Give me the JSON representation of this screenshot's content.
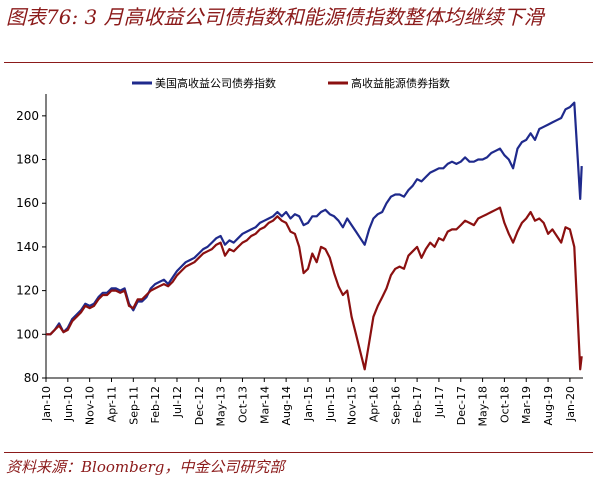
{
  "figure": {
    "title": "图表76: 3 月高收益公司债指数和能源债指数整体均继续下滑",
    "source": "资料来源：Bloomberg，中金公司研究部"
  },
  "chart_data": {
    "type": "line",
    "ylim": [
      80,
      210
    ],
    "yticks": [
      80,
      100,
      120,
      140,
      160,
      180,
      200
    ],
    "xlim": [
      "2010-01",
      "2020-03"
    ],
    "xticks": [
      "Jan-10",
      "Jun-10",
      "Nov-10",
      "Apr-11",
      "Sep-11",
      "Feb-12",
      "Jul-12",
      "Dec-12",
      "May-13",
      "Oct-13",
      "Mar-14",
      "Aug-14",
      "Jan-15",
      "Jun-15",
      "Nov-15",
      "Apr-16",
      "Sep-16",
      "Feb-17",
      "Jul-17",
      "Dec-17",
      "May-18",
      "Oct-18",
      "Mar-19",
      "Aug-19",
      "Jan-20"
    ],
    "grid": false,
    "legend_position": "top",
    "series": [
      {
        "name": "美国高收益公司债券指数",
        "color": "#1F2A8C",
        "points": [
          [
            "2010-01",
            100
          ],
          [
            "2010-02",
            100
          ],
          [
            "2010-03",
            102
          ],
          [
            "2010-04",
            105
          ],
          [
            "2010-05",
            101
          ],
          [
            "2010-06",
            103
          ],
          [
            "2010-07",
            107
          ],
          [
            "2010-08",
            109
          ],
          [
            "2010-09",
            111
          ],
          [
            "2010-10",
            114
          ],
          [
            "2010-11",
            113
          ],
          [
            "2010-12",
            114
          ],
          [
            "2011-01",
            117
          ],
          [
            "2011-02",
            119
          ],
          [
            "2011-03",
            119
          ],
          [
            "2011-04",
            121
          ],
          [
            "2011-05",
            121
          ],
          [
            "2011-06",
            120
          ],
          [
            "2011-07",
            121
          ],
          [
            "2011-08",
            114
          ],
          [
            "2011-09",
            111
          ],
          [
            "2011-10",
            115
          ],
          [
            "2011-11",
            115
          ],
          [
            "2011-12",
            117
          ],
          [
            "2012-01",
            121
          ],
          [
            "2012-02",
            123
          ],
          [
            "2012-03",
            124
          ],
          [
            "2012-04",
            125
          ],
          [
            "2012-05",
            123
          ],
          [
            "2012-06",
            126
          ],
          [
            "2012-07",
            129
          ],
          [
            "2012-08",
            131
          ],
          [
            "2012-09",
            133
          ],
          [
            "2012-10",
            134
          ],
          [
            "2012-11",
            135
          ],
          [
            "2012-12",
            137
          ],
          [
            "2013-01",
            139
          ],
          [
            "2013-02",
            140
          ],
          [
            "2013-03",
            142
          ],
          [
            "2013-04",
            144
          ],
          [
            "2013-05",
            145
          ],
          [
            "2013-06",
            141
          ],
          [
            "2013-07",
            143
          ],
          [
            "2013-08",
            142
          ],
          [
            "2013-09",
            144
          ],
          [
            "2013-10",
            146
          ],
          [
            "2013-11",
            147
          ],
          [
            "2013-12",
            148
          ],
          [
            "2014-01",
            149
          ],
          [
            "2014-02",
            151
          ],
          [
            "2014-03",
            152
          ],
          [
            "2014-04",
            153
          ],
          [
            "2014-05",
            154
          ],
          [
            "2014-06",
            156
          ],
          [
            "2014-07",
            154
          ],
          [
            "2014-08",
            156
          ],
          [
            "2014-09",
            153
          ],
          [
            "2014-10",
            155
          ],
          [
            "2014-11",
            154
          ],
          [
            "2014-12",
            150
          ],
          [
            "2015-01",
            151
          ],
          [
            "2015-02",
            154
          ],
          [
            "2015-03",
            154
          ],
          [
            "2015-04",
            156
          ],
          [
            "2015-05",
            157
          ],
          [
            "2015-06",
            155
          ],
          [
            "2015-07",
            154
          ],
          [
            "2015-08",
            152
          ],
          [
            "2015-09",
            149
          ],
          [
            "2015-10",
            153
          ],
          [
            "2015-11",
            150
          ],
          [
            "2015-12",
            147
          ],
          [
            "2016-01",
            144
          ],
          [
            "2016-02",
            141
          ],
          [
            "2016-03",
            148
          ],
          [
            "2016-04",
            153
          ],
          [
            "2016-05",
            155
          ],
          [
            "2016-06",
            156
          ],
          [
            "2016-07",
            160
          ],
          [
            "2016-08",
            163
          ],
          [
            "2016-09",
            164
          ],
          [
            "2016-10",
            164
          ],
          [
            "2016-11",
            163
          ],
          [
            "2016-12",
            166
          ],
          [
            "2017-01",
            168
          ],
          [
            "2017-02",
            171
          ],
          [
            "2017-03",
            170
          ],
          [
            "2017-04",
            172
          ],
          [
            "2017-05",
            174
          ],
          [
            "2017-06",
            175
          ],
          [
            "2017-07",
            176
          ],
          [
            "2017-08",
            176
          ],
          [
            "2017-09",
            178
          ],
          [
            "2017-10",
            179
          ],
          [
            "2017-11",
            178
          ],
          [
            "2017-12",
            179
          ],
          [
            "2018-01",
            181
          ],
          [
            "2018-02",
            179
          ],
          [
            "2018-03",
            179
          ],
          [
            "2018-04",
            180
          ],
          [
            "2018-05",
            180
          ],
          [
            "2018-06",
            181
          ],
          [
            "2018-07",
            183
          ],
          [
            "2018-08",
            184
          ],
          [
            "2018-09",
            185
          ],
          [
            "2018-10",
            182
          ],
          [
            "2018-11",
            180
          ],
          [
            "2018-12",
            176
          ],
          [
            "2019-01",
            185
          ],
          [
            "2019-02",
            188
          ],
          [
            "2019-03",
            189
          ],
          [
            "2019-04",
            192
          ],
          [
            "2019-05",
            189
          ],
          [
            "2019-06",
            194
          ],
          [
            "2019-07",
            195
          ],
          [
            "2019-08",
            196
          ],
          [
            "2019-09",
            197
          ],
          [
            "2019-10",
            198
          ],
          [
            "2019-11",
            199
          ],
          [
            "2019-12",
            203
          ],
          [
            "2020-01",
            204
          ],
          [
            "2020-02",
            206
          ],
          [
            "2020-03",
            162
          ],
          [
            "2020-03",
            177
          ]
        ]
      },
      {
        "name": "高收益能源债券指数",
        "color": "#8B1010",
        "points": [
          [
            "2010-01",
            100
          ],
          [
            "2010-02",
            100
          ],
          [
            "2010-03",
            102
          ],
          [
            "2010-04",
            104
          ],
          [
            "2010-05",
            101
          ],
          [
            "2010-06",
            102
          ],
          [
            "2010-07",
            106
          ],
          [
            "2010-08",
            108
          ],
          [
            "2010-09",
            110
          ],
          [
            "2010-10",
            113
          ],
          [
            "2010-11",
            112
          ],
          [
            "2010-12",
            113
          ],
          [
            "2011-01",
            116
          ],
          [
            "2011-02",
            118
          ],
          [
            "2011-03",
            118
          ],
          [
            "2011-04",
            120
          ],
          [
            "2011-05",
            120
          ],
          [
            "2011-06",
            119
          ],
          [
            "2011-07",
            120
          ],
          [
            "2011-08",
            113
          ],
          [
            "2011-09",
            112
          ],
          [
            "2011-10",
            116
          ],
          [
            "2011-11",
            116
          ],
          [
            "2011-12",
            118
          ],
          [
            "2012-01",
            120
          ],
          [
            "2012-02",
            121
          ],
          [
            "2012-03",
            122
          ],
          [
            "2012-04",
            123
          ],
          [
            "2012-05",
            122
          ],
          [
            "2012-06",
            124
          ],
          [
            "2012-07",
            127
          ],
          [
            "2012-08",
            129
          ],
          [
            "2012-09",
            131
          ],
          [
            "2012-10",
            132
          ],
          [
            "2012-11",
            133
          ],
          [
            "2012-12",
            135
          ],
          [
            "2013-01",
            137
          ],
          [
            "2013-02",
            138
          ],
          [
            "2013-03",
            139
          ],
          [
            "2013-04",
            141
          ],
          [
            "2013-05",
            142
          ],
          [
            "2013-06",
            136
          ],
          [
            "2013-07",
            139
          ],
          [
            "2013-08",
            138
          ],
          [
            "2013-09",
            140
          ],
          [
            "2013-10",
            142
          ],
          [
            "2013-11",
            143
          ],
          [
            "2013-12",
            145
          ],
          [
            "2014-01",
            146
          ],
          [
            "2014-02",
            148
          ],
          [
            "2014-03",
            149
          ],
          [
            "2014-04",
            151
          ],
          [
            "2014-05",
            152
          ],
          [
            "2014-06",
            154
          ],
          [
            "2014-07",
            152
          ],
          [
            "2014-08",
            151
          ],
          [
            "2014-09",
            147
          ],
          [
            "2014-10",
            146
          ],
          [
            "2014-11",
            140
          ],
          [
            "2014-12",
            128
          ],
          [
            "2015-01",
            130
          ],
          [
            "2015-02",
            137
          ],
          [
            "2015-03",
            133
          ],
          [
            "2015-04",
            140
          ],
          [
            "2015-05",
            139
          ],
          [
            "2015-06",
            135
          ],
          [
            "2015-07",
            128
          ],
          [
            "2015-08",
            122
          ],
          [
            "2015-09",
            118
          ],
          [
            "2015-10",
            120
          ],
          [
            "2015-11",
            108
          ],
          [
            "2015-12",
            100
          ],
          [
            "2016-01",
            92
          ],
          [
            "2016-02",
            84
          ],
          [
            "2016-03",
            96
          ],
          [
            "2016-04",
            108
          ],
          [
            "2016-05",
            113
          ],
          [
            "2016-06",
            117
          ],
          [
            "2016-07",
            121
          ],
          [
            "2016-08",
            127
          ],
          [
            "2016-09",
            130
          ],
          [
            "2016-10",
            131
          ],
          [
            "2016-11",
            130
          ],
          [
            "2016-12",
            136
          ],
          [
            "2017-01",
            138
          ],
          [
            "2017-02",
            140
          ],
          [
            "2017-03",
            135
          ],
          [
            "2017-04",
            139
          ],
          [
            "2017-05",
            142
          ],
          [
            "2017-06",
            140
          ],
          [
            "2017-07",
            144
          ],
          [
            "2017-08",
            143
          ],
          [
            "2017-09",
            147
          ],
          [
            "2017-10",
            148
          ],
          [
            "2017-11",
            148
          ],
          [
            "2017-12",
            150
          ],
          [
            "2018-01",
            152
          ],
          [
            "2018-02",
            151
          ],
          [
            "2018-03",
            150
          ],
          [
            "2018-04",
            153
          ],
          [
            "2018-05",
            154
          ],
          [
            "2018-06",
            155
          ],
          [
            "2018-07",
            156
          ],
          [
            "2018-08",
            157
          ],
          [
            "2018-09",
            158
          ],
          [
            "2018-10",
            151
          ],
          [
            "2018-11",
            146
          ],
          [
            "2018-12",
            142
          ],
          [
            "2019-01",
            147
          ],
          [
            "2019-02",
            151
          ],
          [
            "2019-03",
            153
          ],
          [
            "2019-04",
            156
          ],
          [
            "2019-05",
            152
          ],
          [
            "2019-06",
            153
          ],
          [
            "2019-07",
            151
          ],
          [
            "2019-08",
            146
          ],
          [
            "2019-09",
            148
          ],
          [
            "2019-10",
            145
          ],
          [
            "2019-11",
            142
          ],
          [
            "2019-12",
            149
          ],
          [
            "2020-01",
            148
          ],
          [
            "2020-02",
            140
          ],
          [
            "2020-03",
            84
          ],
          [
            "2020-03",
            90
          ]
        ]
      }
    ]
  }
}
